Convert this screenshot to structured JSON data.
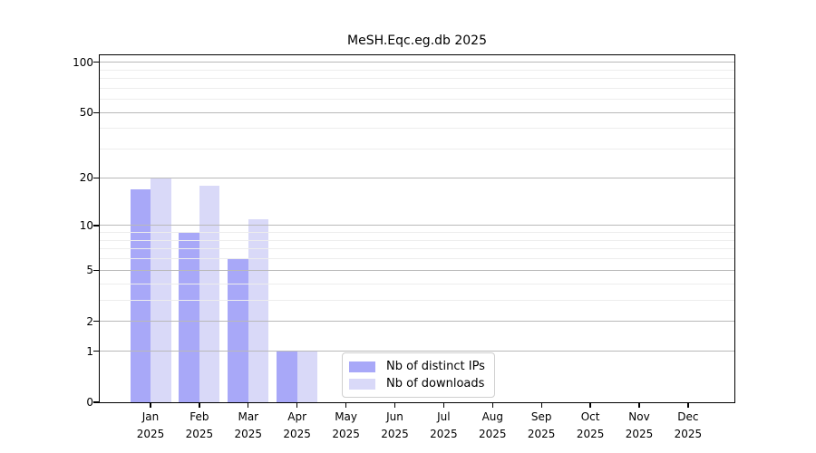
{
  "chart_data": {
    "type": "bar",
    "title": "MeSH.Eqc.eg.db 2025",
    "categories": [
      "Jan 2025",
      "Feb 2025",
      "Mar 2025",
      "Apr 2025",
      "May 2025",
      "Jun 2025",
      "Jul 2025",
      "Aug 2025",
      "Sep 2025",
      "Oct 2025",
      "Nov 2025",
      "Dec 2025"
    ],
    "series": [
      {
        "name": "Nb of distinct IPs",
        "color": "#a8a8f8",
        "values": [
          17,
          9,
          6,
          1,
          0,
          0,
          0,
          0,
          0,
          0,
          0,
          0
        ]
      },
      {
        "name": "Nb of downloads",
        "color": "#d9d9f8",
        "values": [
          20,
          18,
          11,
          1,
          0,
          0,
          0,
          0,
          0,
          0,
          0,
          0
        ]
      }
    ],
    "xlabel": "",
    "ylabel": "",
    "yscale": "log1p",
    "ylim": [
      0,
      110
    ],
    "yticks": {
      "values": [
        0,
        1,
        2,
        5,
        10,
        20,
        50,
        100
      ],
      "labels": [
        "0",
        "1",
        "2",
        "5",
        "10",
        "20",
        "50",
        "100"
      ]
    },
    "yticks_minor": [
      3,
      4,
      6,
      7,
      8,
      9,
      30,
      40,
      60,
      70,
      80,
      90
    ],
    "grid": true,
    "legend_position": "lower center",
    "colors": {
      "major_grid": "#b9b9b9",
      "minor_grid": "#ededed",
      "spine": "#000000",
      "text": "#000000",
      "background": "#ffffff"
    }
  }
}
